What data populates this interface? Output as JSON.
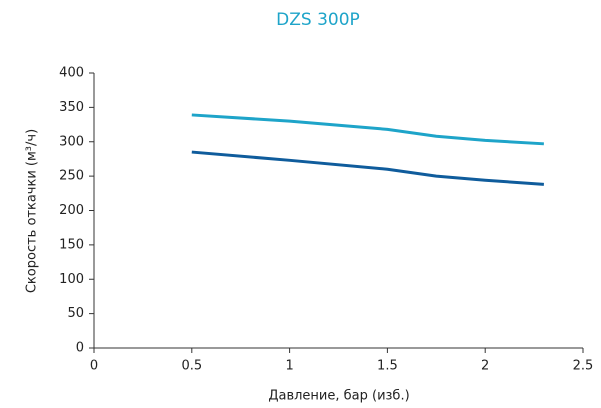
{
  "chart_data": {
    "type": "line",
    "title": "DZS 300P",
    "xlabel": "Давление, бар (изб.)",
    "ylabel": "Скорость откачки (м³/ч)",
    "x": [
      0.5,
      1,
      1.5,
      1.75,
      2,
      2.3
    ],
    "series": [
      {
        "color": "#1ea4c9",
        "values": [
          339,
          330,
          318,
          308,
          302,
          297
        ]
      },
      {
        "color": "#0f5c9c",
        "values": [
          285,
          273,
          260,
          250,
          244,
          238
        ]
      }
    ],
    "xlim": [
      0,
      2.5
    ],
    "xticks": [
      0,
      0.5,
      1,
      1.5,
      2,
      2.5
    ],
    "ylim": [
      0,
      400
    ],
    "yticks": [
      0,
      50,
      100,
      150,
      200,
      250,
      300,
      350,
      400
    ],
    "grid": false
  }
}
